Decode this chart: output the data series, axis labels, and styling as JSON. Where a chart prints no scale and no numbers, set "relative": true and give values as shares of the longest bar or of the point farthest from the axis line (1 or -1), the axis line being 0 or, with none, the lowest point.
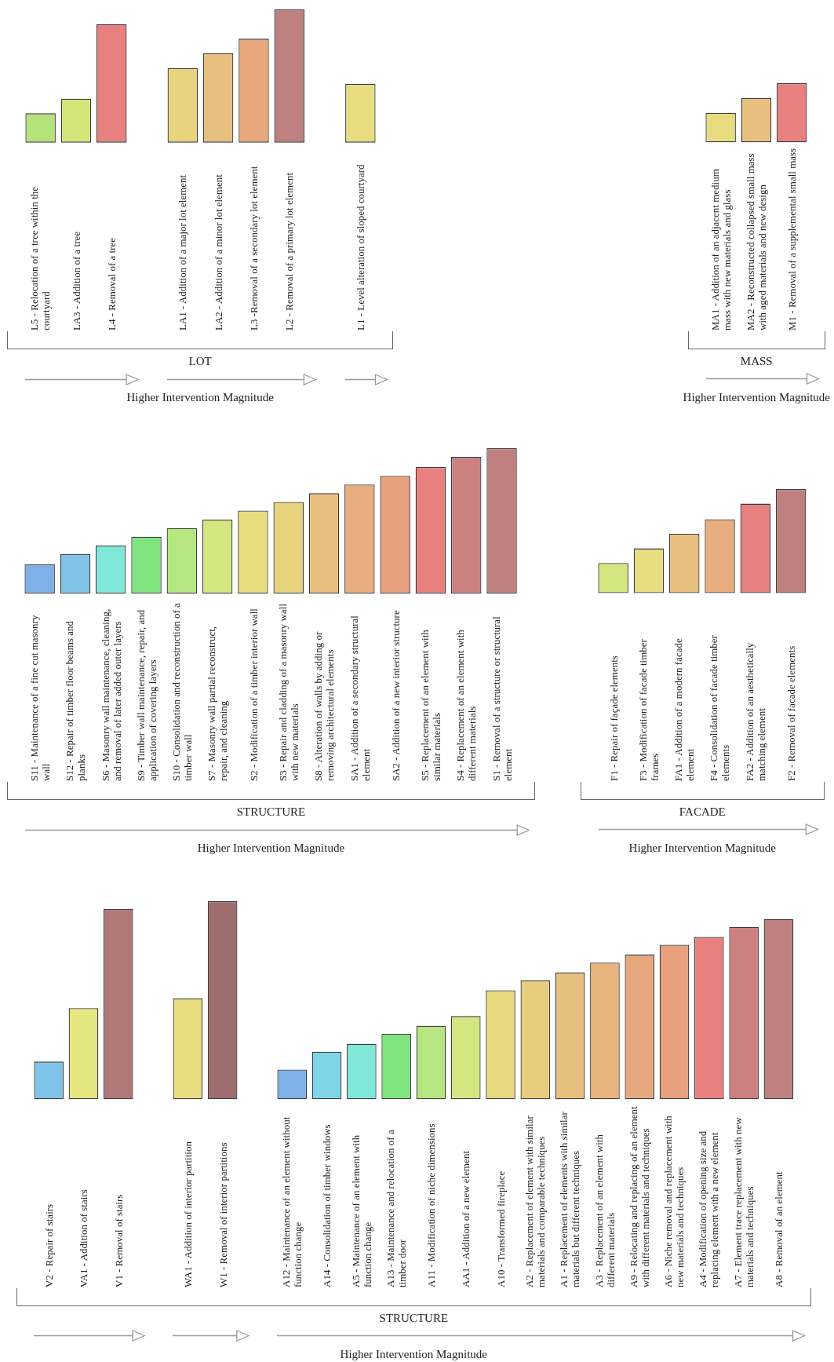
{
  "chart_data": [
    {
      "type": "bar",
      "relative": true,
      "xlabel": "LOT",
      "annotations": [
        "Higher Intervention Magnitude"
      ],
      "categories": [
        "L5 - Relocation of a tree within the courtyard",
        "LA3 - Addition of a tree",
        "L4 - Removal of a tree",
        null,
        "LA1 - Addition of a major lot element",
        "LA2 - Addition of a minor lot element",
        "L3 -Removal of a secondary lot element",
        "L2 - Removal of a primary lot element",
        null,
        "L1 - Level alteration of sloped courtyard"
      ],
      "values": [
        0.22,
        0.33,
        0.89,
        null,
        0.56,
        0.67,
        0.78,
        1,
        null,
        0.44
      ],
      "colors": [
        "#b5e27a",
        "#d4e67a",
        "#e88080",
        null,
        "#e8d47e",
        "#e8bf7e",
        "#e8a87e",
        "#bf8080",
        null,
        "#e8dc80"
      ]
    },
    {
      "type": "bar",
      "relative": true,
      "xlabel": "MASS",
      "annotations": [
        "Higher Intervention Magnitude"
      ],
      "categories": [
        "MA1 - Addition of an adjacent medium mass with new materials and glass",
        "MA2 - Reconstructed collapsed small mass with aged materials and new design",
        "M1 - Removal of a supplemental small mass"
      ],
      "values": [
        0.5,
        0.75,
        1
      ],
      "colors": [
        "#e8dc80",
        "#e8bf7e",
        "#e88080"
      ]
    },
    {
      "type": "bar",
      "relative": true,
      "xlabel": "STRUCTURE",
      "annotations": [
        "Higher Intervention Magnitude"
      ],
      "categories": [
        "S11 - Maintenance of a fine cut masonry wall",
        "S12 - Repair of timber floor beams and planks",
        "S6 - Masonry wall maintenance, cleaning, and removal of later added outer layers",
        "S9 - Timber wall maintenance, repair, and application of covering layers",
        "S10 - Consolidation and reconstruction of a timber wall",
        "S7 - Masonry wall partial reconstruct, repair, and cleaning",
        "S2 - Modification of a timber interior wall",
        "S3 - Repair and cladding of a masonry wall with new materials",
        "S8 - Alteration of walls by adding or removing architectural elements",
        "SA1 - Addition of a secondary structural element",
        "SA2 - Addition of a new interior structure",
        "S5 - Replacement of an element with similar materials",
        "S4 - Replacement of an element with different materials",
        "S1 - Removal of a structure or structural element"
      ],
      "values": [
        0.2,
        0.27,
        0.33,
        0.39,
        0.45,
        0.51,
        0.57,
        0.63,
        0.69,
        0.75,
        0.81,
        0.87,
        0.94,
        1
      ],
      "colors": [
        "#7fb0e8",
        "#7fc4e8",
        "#7fe8d8",
        "#80e47f",
        "#b5e680",
        "#d4e680",
        "#e8dc80",
        "#e8d27e",
        "#e8bf7e",
        "#e8ad7e",
        "#e8a07e",
        "#e88080",
        "#cc8080",
        "#bf8080"
      ]
    },
    {
      "type": "bar",
      "relative": true,
      "xlabel": "FACADE",
      "annotations": [
        "Higher Intervention Magnitude"
      ],
      "categories": [
        "F1 - Repair of façade elements",
        "F3 - Modification of facade timber frames",
        "FA1 - Addition of a modern facade element",
        "F4 - Consolidation of facade timber elements",
        "FA2 - Addition of an aesthetically matching element",
        "F2 - Removal of facade elements"
      ],
      "values": [
        0.29,
        0.43,
        0.57,
        0.71,
        0.86,
        1
      ],
      "colors": [
        "#d4e680",
        "#e8dc80",
        "#e8bf7e",
        "#e8ad7e",
        "#e88080",
        "#bf8080"
      ]
    },
    {
      "type": "bar",
      "relative": true,
      "xlabel": "STRUCTURE",
      "annotations": [
        "Higher Intervention Magnitude"
      ],
      "categories": [
        "V2 - Repair of stairs",
        "VA1 - Addition of stairs",
        "V1 - Removal of stairs",
        null,
        "WA1 - Addition of interior partition",
        "W1 - Removal of interior partitions",
        null,
        "A12 - Maintenance of an element without function change",
        "A14 - Consolidation of timber windows",
        "A5 - Maintenance of an element with function change",
        "A13 - Maintenance and relocation of a timber door",
        "A11 - Modification of niche dimensions",
        "AA1 - Addition of a new element",
        "A10 - Transformed fireplace",
        "A2 - Replacement of element with similar materials and comparable techniques",
        "A1 - Replacement of elements with similar materials but different techniques",
        "A3 - Replacement of an element with different materials",
        "A9 - Relocating and replacing of an element with different materials and techniques",
        "A6 - Niche removal and replacement with new materials and techniques",
        "A4 - Modification of opening size and replacing element with a new element",
        "A7 - Element trace replacement with new materials and techniques",
        "A8 - Removal of an element"
      ],
      "values": [
        0.19,
        0.46,
        0.96,
        null,
        0.51,
        1,
        null,
        0.15,
        0.24,
        0.28,
        0.33,
        0.37,
        0.42,
        0.55,
        0.6,
        0.64,
        0.69,
        0.73,
        0.78,
        0.82,
        0.87,
        0.91
      ],
      "colors": [
        "#7fc4e8",
        "#e4e680",
        "#b07878",
        null,
        "#e8dc80",
        "#9e6e6e",
        null,
        "#7fb0e8",
        "#7fd4e8",
        "#7fe8d8",
        "#80e47f",
        "#b5e680",
        "#d4e680",
        "#e8d880",
        "#e8cc7e",
        "#e8c07e",
        "#e8b47e",
        "#e8a87e",
        "#e8a07e",
        "#e88080",
        "#cc8080",
        "#bf8080"
      ]
    }
  ]
}
